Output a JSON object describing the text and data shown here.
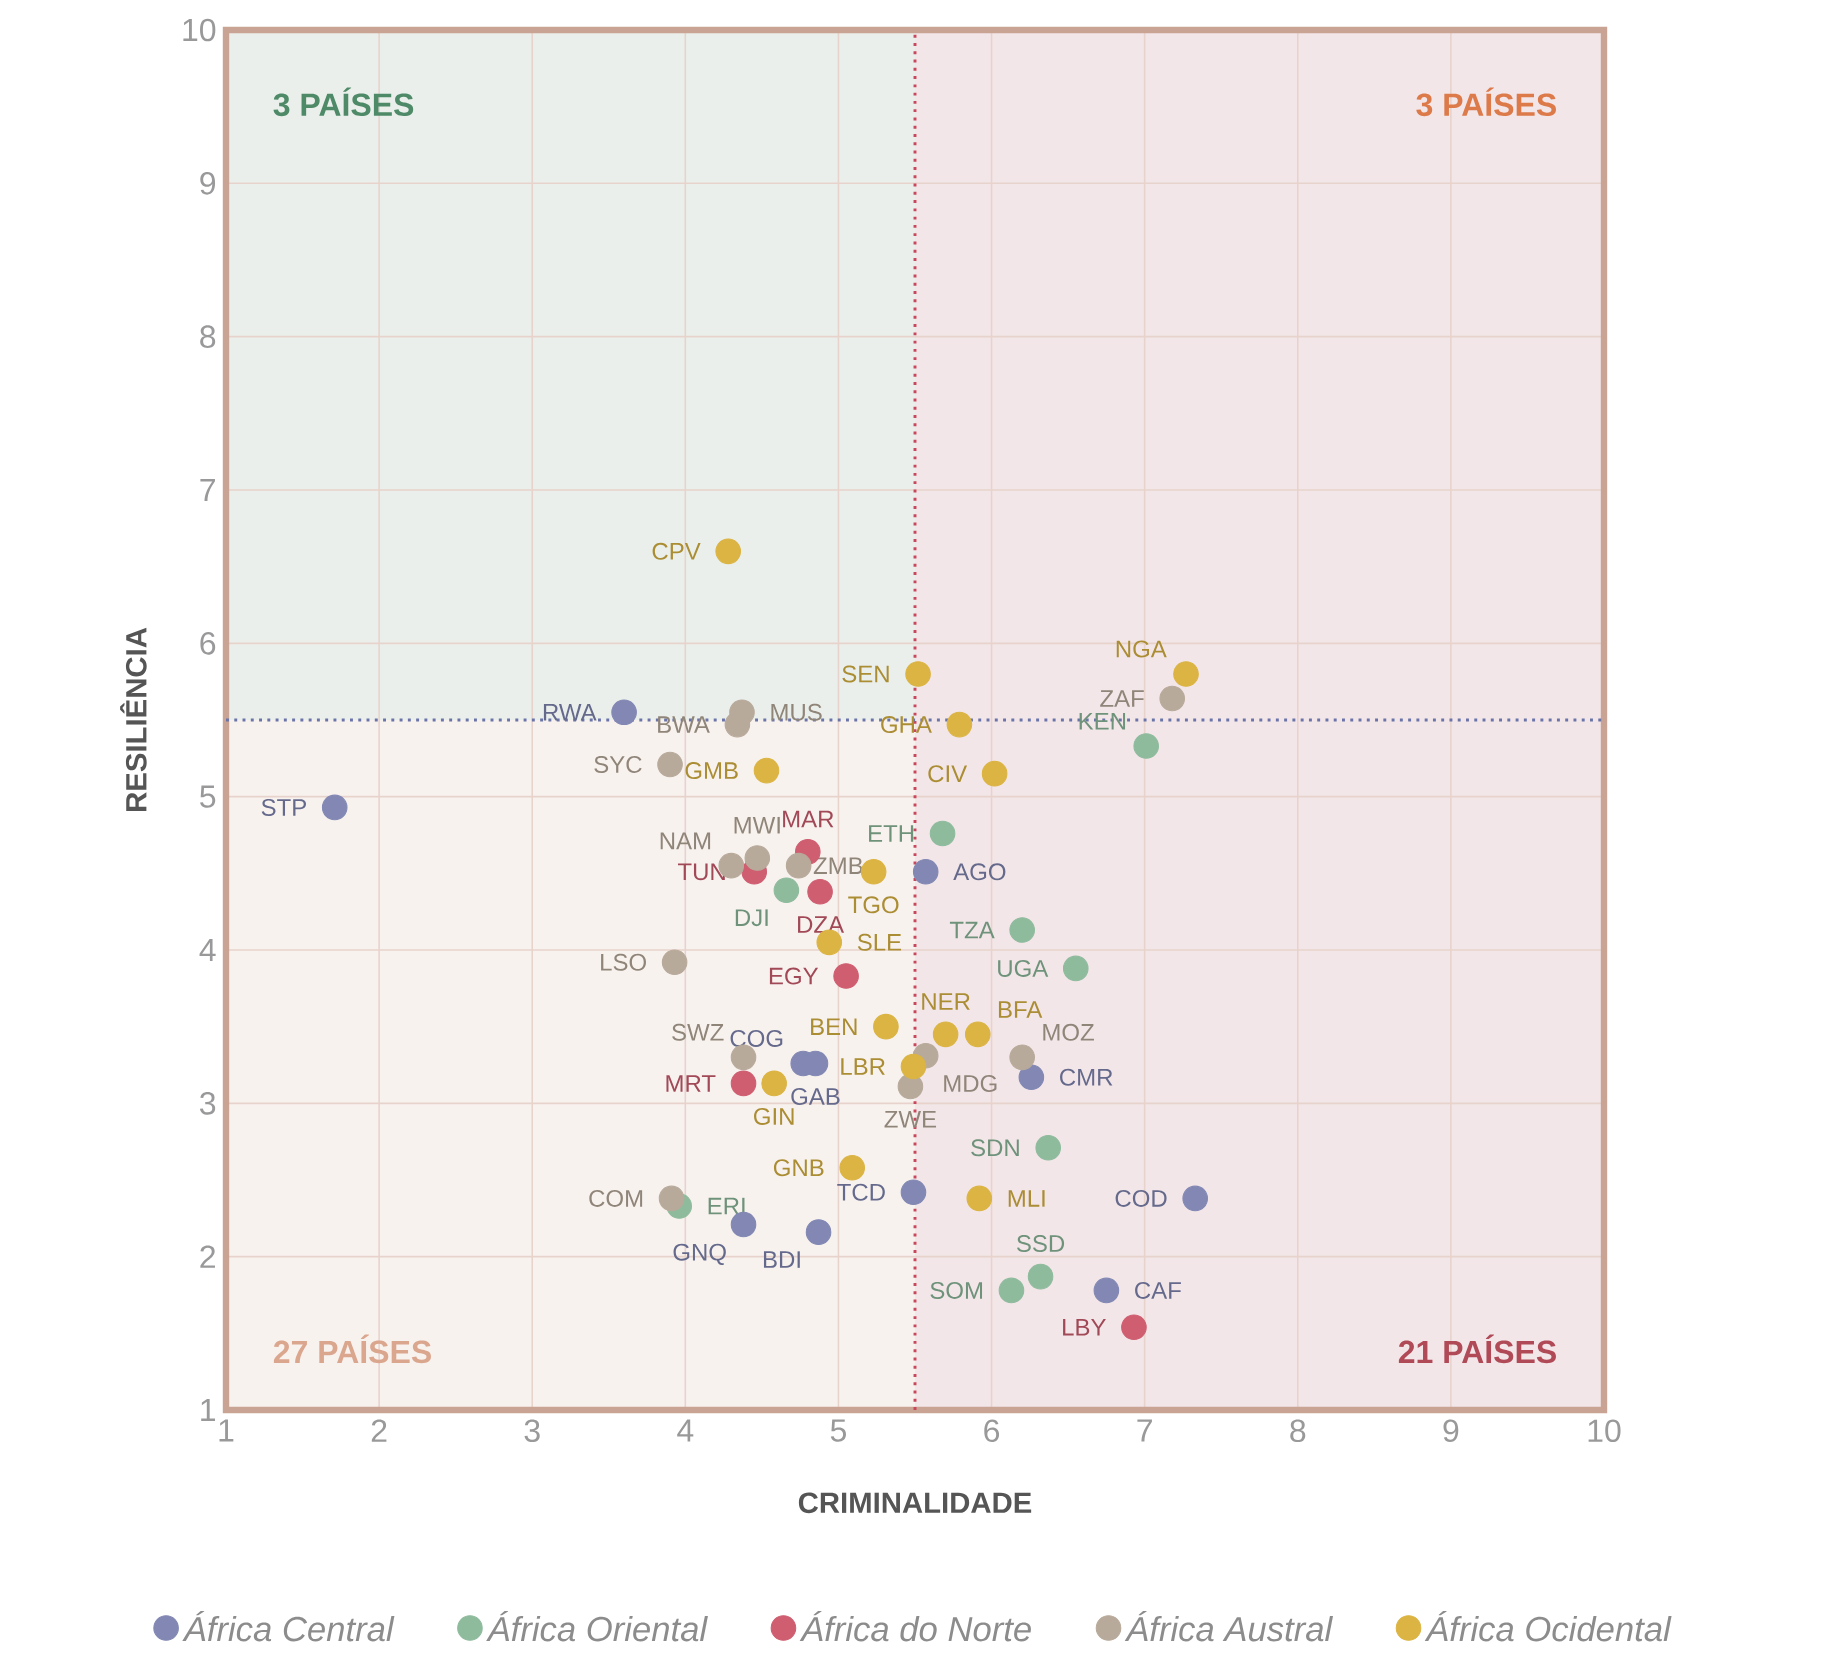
{
  "chart_data": {
    "type": "scatter",
    "xlabel": "CRIMINALIDADE",
    "ylabel": "RESILIÊNCIA",
    "xlim": [
      1,
      10
    ],
    "ylim": [
      1,
      10
    ],
    "xticks": [
      1,
      2,
      3,
      4,
      5,
      6,
      7,
      8,
      9,
      10
    ],
    "yticks": [
      1,
      2,
      3,
      4,
      5,
      6,
      7,
      8,
      9,
      10
    ],
    "grid": true,
    "legend": "bottom",
    "series": [
      {
        "name": "África Central",
        "color": "#8288b3",
        "x": [
          3.6,
          1.71,
          5.57,
          4.77,
          4.85,
          6.26,
          5.49,
          7.33,
          4.38,
          4.87,
          6.75
        ],
        "values": [
          5.55,
          4.93,
          4.51,
          3.26,
          3.26,
          3.17,
          2.42,
          2.38,
          2.21,
          2.16,
          1.78
        ]
      },
      {
        "name": "África Oriental",
        "color": "#8fbb9d",
        "x": [
          5.68,
          7.01,
          6.2,
          6.55,
          4.66,
          6.37,
          3.96,
          6.32,
          6.13
        ],
        "values": [
          4.76,
          5.33,
          4.13,
          3.88,
          4.39,
          2.71,
          2.33,
          1.87,
          1.78
        ]
      },
      {
        "name": "África do Norte",
        "color": "#cf5e70",
        "x": [
          4.8,
          4.45,
          4.88,
          5.05,
          4.38,
          6.93
        ],
        "values": [
          4.64,
          4.51,
          4.38,
          3.83,
          3.13,
          1.54
        ]
      },
      {
        "name": "África Austral",
        "color": "#b8aa9b",
        "x": [
          4.37,
          4.34,
          3.9,
          4.3,
          4.47,
          4.74,
          3.93,
          4.38,
          5.57,
          5.47,
          6.2,
          7.18,
          3.91
        ],
        "values": [
          5.55,
          5.47,
          5.21,
          4.55,
          4.6,
          4.55,
          3.92,
          3.3,
          3.31,
          3.11,
          3.3,
          5.64,
          2.38
        ]
      },
      {
        "name": "África Ocidental",
        "color": "#dbb443",
        "x": [
          4.28,
          5.52,
          7.27,
          5.79,
          4.53,
          6.02,
          5.23,
          4.94,
          5.7,
          5.91,
          5.31,
          5.49,
          4.58,
          5.09,
          5.92
        ],
        "values": [
          6.6,
          5.8,
          5.8,
          5.47,
          5.17,
          5.15,
          4.51,
          4.05,
          3.45,
          3.45,
          3.5,
          3.24,
          3.13,
          2.58,
          2.38
        ]
      }
    ],
    "bands": [
      {
        "axis": "y",
        "from": 5.5,
        "to": 10,
        "color": "#eaefeb"
      },
      {
        "axis": "x",
        "from": 5.5,
        "to": 10,
        "color": "#f3e6e9"
      }
    ],
    "ref_lines": [
      {
        "axis": "x",
        "value": 5.5,
        "color": "#c9475c",
        "line_style": "dotted"
      },
      {
        "axis": "y",
        "value": 5.5,
        "color": "#6b74a8",
        "line_style": "dotted"
      }
    ],
    "annotations": [
      "3 PAÍSES",
      "3 PAÍSES",
      "27 PAÍSES",
      "21 PAÍSES",
      {
        "text": "RWA",
        "x": 3.6,
        "y": 5.55
      },
      {
        "text": "STP",
        "x": 1.71,
        "y": 4.93
      },
      {
        "text": "AGO",
        "x": 5.57,
        "y": 4.51
      },
      {
        "text": "COG",
        "x": 4.77,
        "y": 3.26
      },
      {
        "text": "GAB",
        "x": 4.85,
        "y": 3.26
      },
      {
        "text": "CMR",
        "x": 6.26,
        "y": 3.17
      },
      {
        "text": "TCD",
        "x": 5.49,
        "y": 2.42
      },
      {
        "text": "COD",
        "x": 7.33,
        "y": 2.38
      },
      {
        "text": "GNQ",
        "x": 4.38,
        "y": 2.21
      },
      {
        "text": "BDI",
        "x": 4.87,
        "y": 2.16
      },
      {
        "text": "CAF",
        "x": 6.75,
        "y": 1.78
      },
      {
        "text": "ETH",
        "x": 5.68,
        "y": 4.76
      },
      {
        "text": "KEN",
        "x": 7.01,
        "y": 5.33
      },
      {
        "text": "TZA",
        "x": 6.2,
        "y": 4.13
      },
      {
        "text": "UGA",
        "x": 6.55,
        "y": 3.88
      },
      {
        "text": "DJI",
        "x": 4.66,
        "y": 4.39
      },
      {
        "text": "SDN",
        "x": 6.37,
        "y": 2.71
      },
      {
        "text": "ERI",
        "x": 3.96,
        "y": 2.33
      },
      {
        "text": "SSD",
        "x": 6.32,
        "y": 1.87
      },
      {
        "text": "SOM",
        "x": 6.13,
        "y": 1.78
      },
      {
        "text": "MAR",
        "x": 4.8,
        "y": 4.64
      },
      {
        "text": "TUN",
        "x": 4.45,
        "y": 4.51
      },
      {
        "text": "DZA",
        "x": 4.88,
        "y": 4.38
      },
      {
        "text": "EGY",
        "x": 5.05,
        "y": 3.83
      },
      {
        "text": "MRT",
        "x": 4.38,
        "y": 3.13
      },
      {
        "text": "LBY",
        "x": 6.93,
        "y": 1.54
      },
      {
        "text": "MUS",
        "x": 4.37,
        "y": 5.55
      },
      {
        "text": "BWA",
        "x": 4.34,
        "y": 5.47
      },
      {
        "text": "SYC",
        "x": 3.9,
        "y": 5.21
      },
      {
        "text": "NAM",
        "x": 4.3,
        "y": 4.55
      },
      {
        "text": "MWI",
        "x": 4.47,
        "y": 4.6
      },
      {
        "text": "ZMB",
        "x": 4.74,
        "y": 4.55
      },
      {
        "text": "LSO",
        "x": 3.93,
        "y": 3.92
      },
      {
        "text": "SWZ",
        "x": 4.38,
        "y": 3.3
      },
      {
        "text": "MDG",
        "x": 5.57,
        "y": 3.31
      },
      {
        "text": "ZWE",
        "x": 5.47,
        "y": 3.11
      },
      {
        "text": "MOZ",
        "x": 6.2,
        "y": 3.3
      },
      {
        "text": "ZAF",
        "x": 7.18,
        "y": 5.64
      },
      {
        "text": "COM",
        "x": 3.91,
        "y": 2.38
      },
      {
        "text": "CPV",
        "x": 4.28,
        "y": 6.6
      },
      {
        "text": "SEN",
        "x": 5.52,
        "y": 5.8
      },
      {
        "text": "NGA",
        "x": 7.27,
        "y": 5.8
      },
      {
        "text": "GHA",
        "x": 5.79,
        "y": 5.47
      },
      {
        "text": "GMB",
        "x": 4.53,
        "y": 5.17
      },
      {
        "text": "CIV",
        "x": 6.02,
        "y": 5.15
      },
      {
        "text": "TGO",
        "x": 5.23,
        "y": 4.51
      },
      {
        "text": "SLE",
        "x": 4.94,
        "y": 4.05
      },
      {
        "text": "NER",
        "x": 5.7,
        "y": 3.45
      },
      {
        "text": "BFA",
        "x": 5.91,
        "y": 3.45
      },
      {
        "text": "BEN",
        "x": 5.31,
        "y": 3.5
      },
      {
        "text": "LBR",
        "x": 5.49,
        "y": 3.24
      },
      {
        "text": "GIN",
        "x": 4.58,
        "y": 3.13
      },
      {
        "text": "GNB",
        "x": 5.09,
        "y": 2.58
      },
      {
        "text": "MLI",
        "x": 5.92,
        "y": 2.38
      }
    ]
  }
}
